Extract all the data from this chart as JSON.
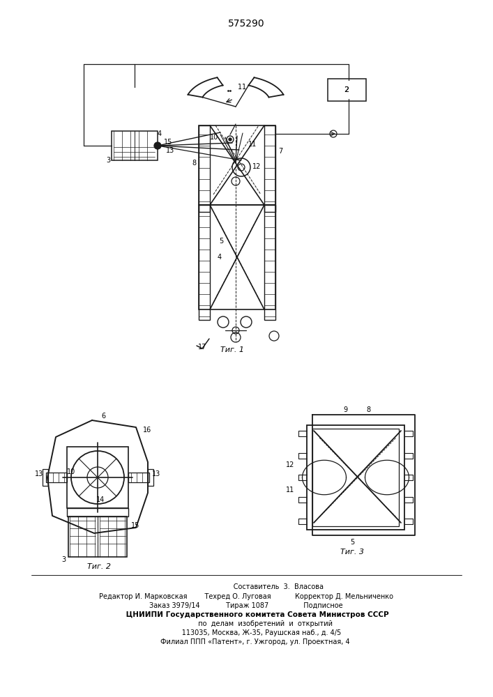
{
  "title": "575290",
  "bg_color": "#ffffff",
  "line_color": "#1a1a1a",
  "fig1_caption": "Τиг. 1",
  "fig2_caption": "Τиг. 2",
  "fig3_caption": "Τиг. 3",
  "footer_lines": [
    "                              Составитель  3.  Власова",
    "Редактор И. Марковская        Техред О. Луговая           Корректор Д. Мельниченко",
    "Заказ 3979/14            Тираж 1087                Подписное",
    "         ЦНИИПИ Государственного комитета Совета Министров СССР",
    "                  по  делам  изобретений  и  открытий",
    "              113035, Москва, Ж-35, Раушская наб., д. 4/5",
    "        Филиал ППП «Патент», г. Ужгород, ул. Проектная, 4"
  ]
}
